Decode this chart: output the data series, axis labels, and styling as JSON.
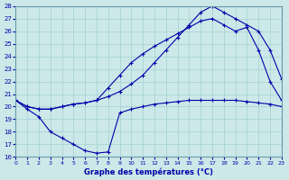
{
  "title": "Graphe des températures (°C)",
  "bg_color": "#cce8e8",
  "line_color": "#0000aa",
  "xlim": [
    0,
    23
  ],
  "ylim": [
    16,
    28
  ],
  "xticks": [
    0,
    1,
    2,
    3,
    4,
    5,
    6,
    7,
    8,
    9,
    10,
    11,
    12,
    13,
    14,
    15,
    16,
    17,
    18,
    19,
    20,
    21,
    22,
    23
  ],
  "yticks": [
    16,
    17,
    18,
    19,
    20,
    21,
    22,
    23,
    24,
    25,
    26,
    27,
    28
  ],
  "line1_x": [
    0,
    1,
    2,
    3,
    4,
    5,
    6,
    7,
    8,
    9,
    10,
    11,
    12,
    13,
    14,
    15,
    16,
    17,
    18,
    19,
    20,
    21,
    22,
    23
  ],
  "line1_y": [
    20.5,
    20.0,
    19.8,
    19.8,
    20.0,
    20.2,
    20.3,
    20.5,
    20.8,
    21.2,
    21.8,
    22.5,
    23.5,
    24.5,
    25.5,
    26.5,
    27.5,
    28.0,
    27.5,
    27.0,
    26.5,
    26.0,
    24.5,
    22.2
  ],
  "line2_x": [
    0,
    1,
    2,
    3,
    4,
    5,
    6,
    7,
    8,
    9,
    10,
    11,
    12,
    13,
    14,
    15,
    16,
    17,
    18,
    19,
    20,
    21,
    22,
    23
  ],
  "line2_y": [
    20.5,
    20.0,
    19.8,
    19.8,
    20.0,
    20.2,
    20.3,
    20.5,
    21.5,
    22.5,
    23.5,
    24.2,
    24.8,
    25.3,
    25.8,
    26.3,
    26.8,
    27.0,
    26.5,
    26.0,
    26.3,
    24.5,
    22.0,
    20.5
  ],
  "line3_x": [
    0,
    1,
    2,
    3,
    4,
    5,
    6,
    7,
    8,
    9,
    10,
    11,
    12,
    13,
    14,
    15,
    16,
    17,
    18,
    19,
    20,
    21,
    22,
    23
  ],
  "line3_y": [
    20.5,
    19.8,
    19.2,
    18.0,
    17.5,
    17.0,
    16.5,
    16.3,
    16.4,
    19.5,
    19.8,
    20.0,
    20.2,
    20.3,
    20.4,
    20.5,
    20.5,
    20.5,
    20.5,
    20.5,
    20.4,
    20.3,
    20.2,
    20.0
  ]
}
